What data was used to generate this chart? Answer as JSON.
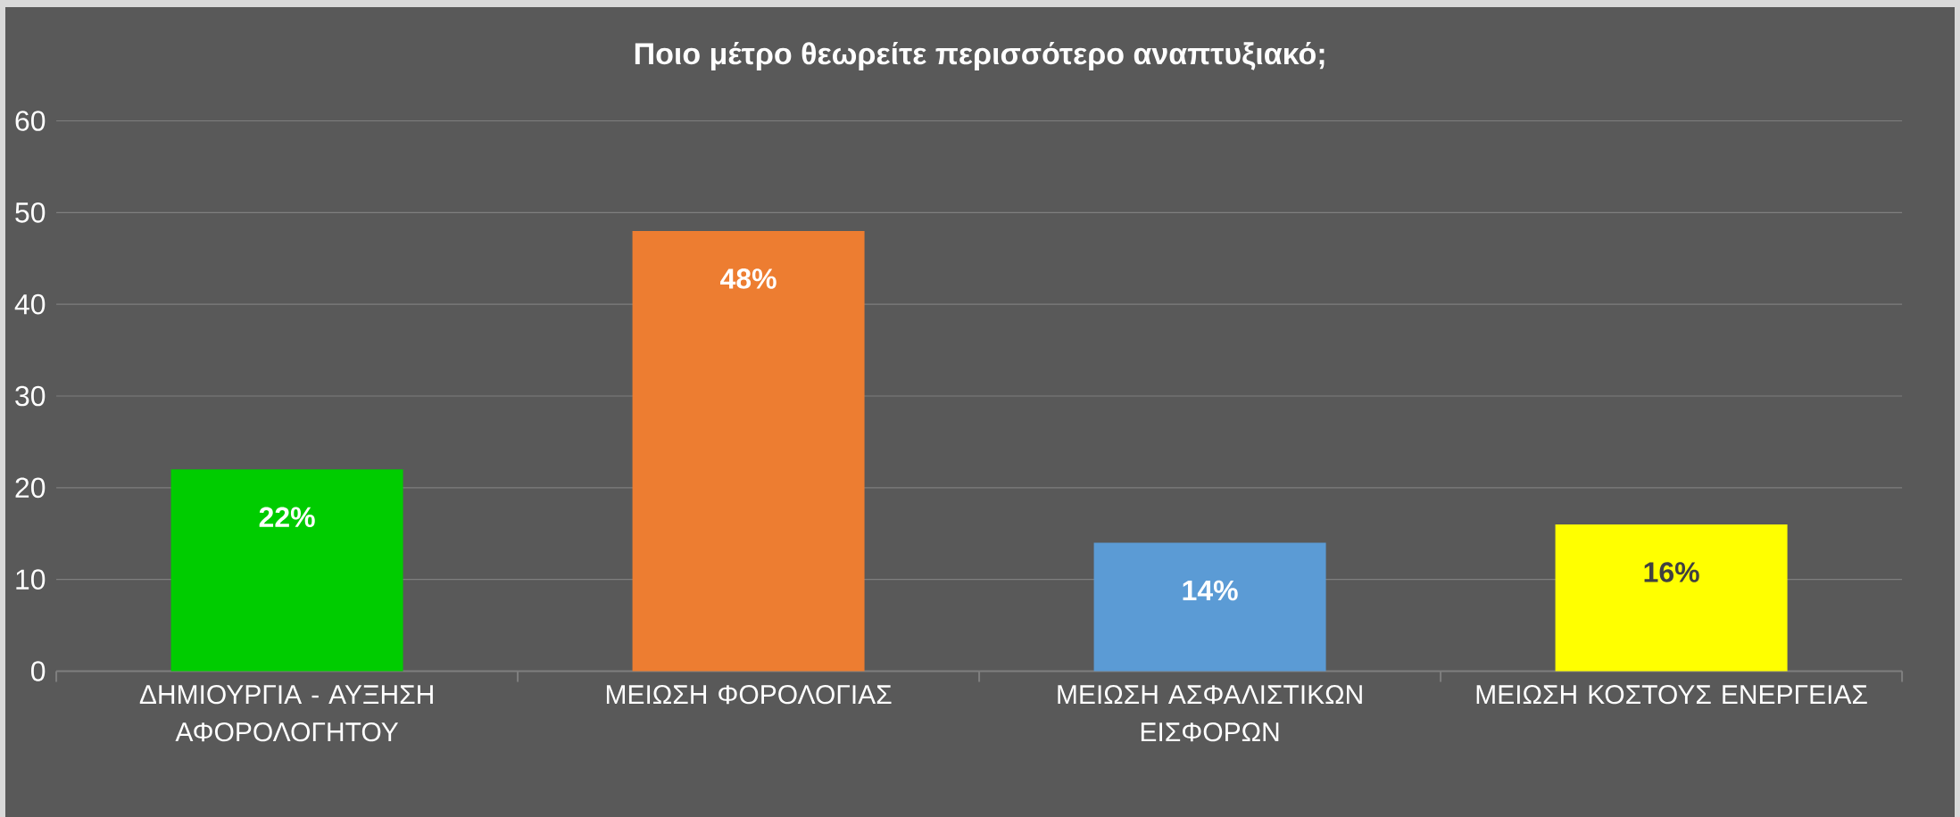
{
  "chart_data": {
    "type": "bar",
    "title": "Ποιο μέτρο θεωρείτε περισσότερο αναπτυξιακό;",
    "categories": [
      "ΔΗΜΙΟΥΡΓΙΑ - ΑΥΞΗΣΗ ΑΦΟΡΟΛΟΓΗΤΟΥ",
      "ΜΕΙΩΣΗ ΦΟΡΟΛΟΓΙΑΣ",
      "ΜΕΙΩΣΗ ΑΣΦΑΛΙΣΤΙΚΩΝ ΕΙΣΦΟΡΩΝ",
      "ΜΕΙΩΣΗ ΚΟΣΤΟΥΣ ΕΝΕΡΓΕΙΑΣ"
    ],
    "values": [
      22,
      48,
      14,
      16
    ],
    "value_labels": [
      "22%",
      "48%",
      "14%",
      "16%"
    ],
    "colors": [
      "#00cc00",
      "#ed7d31",
      "#5b9bd5",
      "#ffff00"
    ],
    "ylim": [
      0,
      60
    ],
    "yticks": [
      0,
      10,
      20,
      30,
      40,
      50,
      60
    ],
    "grid": "y"
  }
}
